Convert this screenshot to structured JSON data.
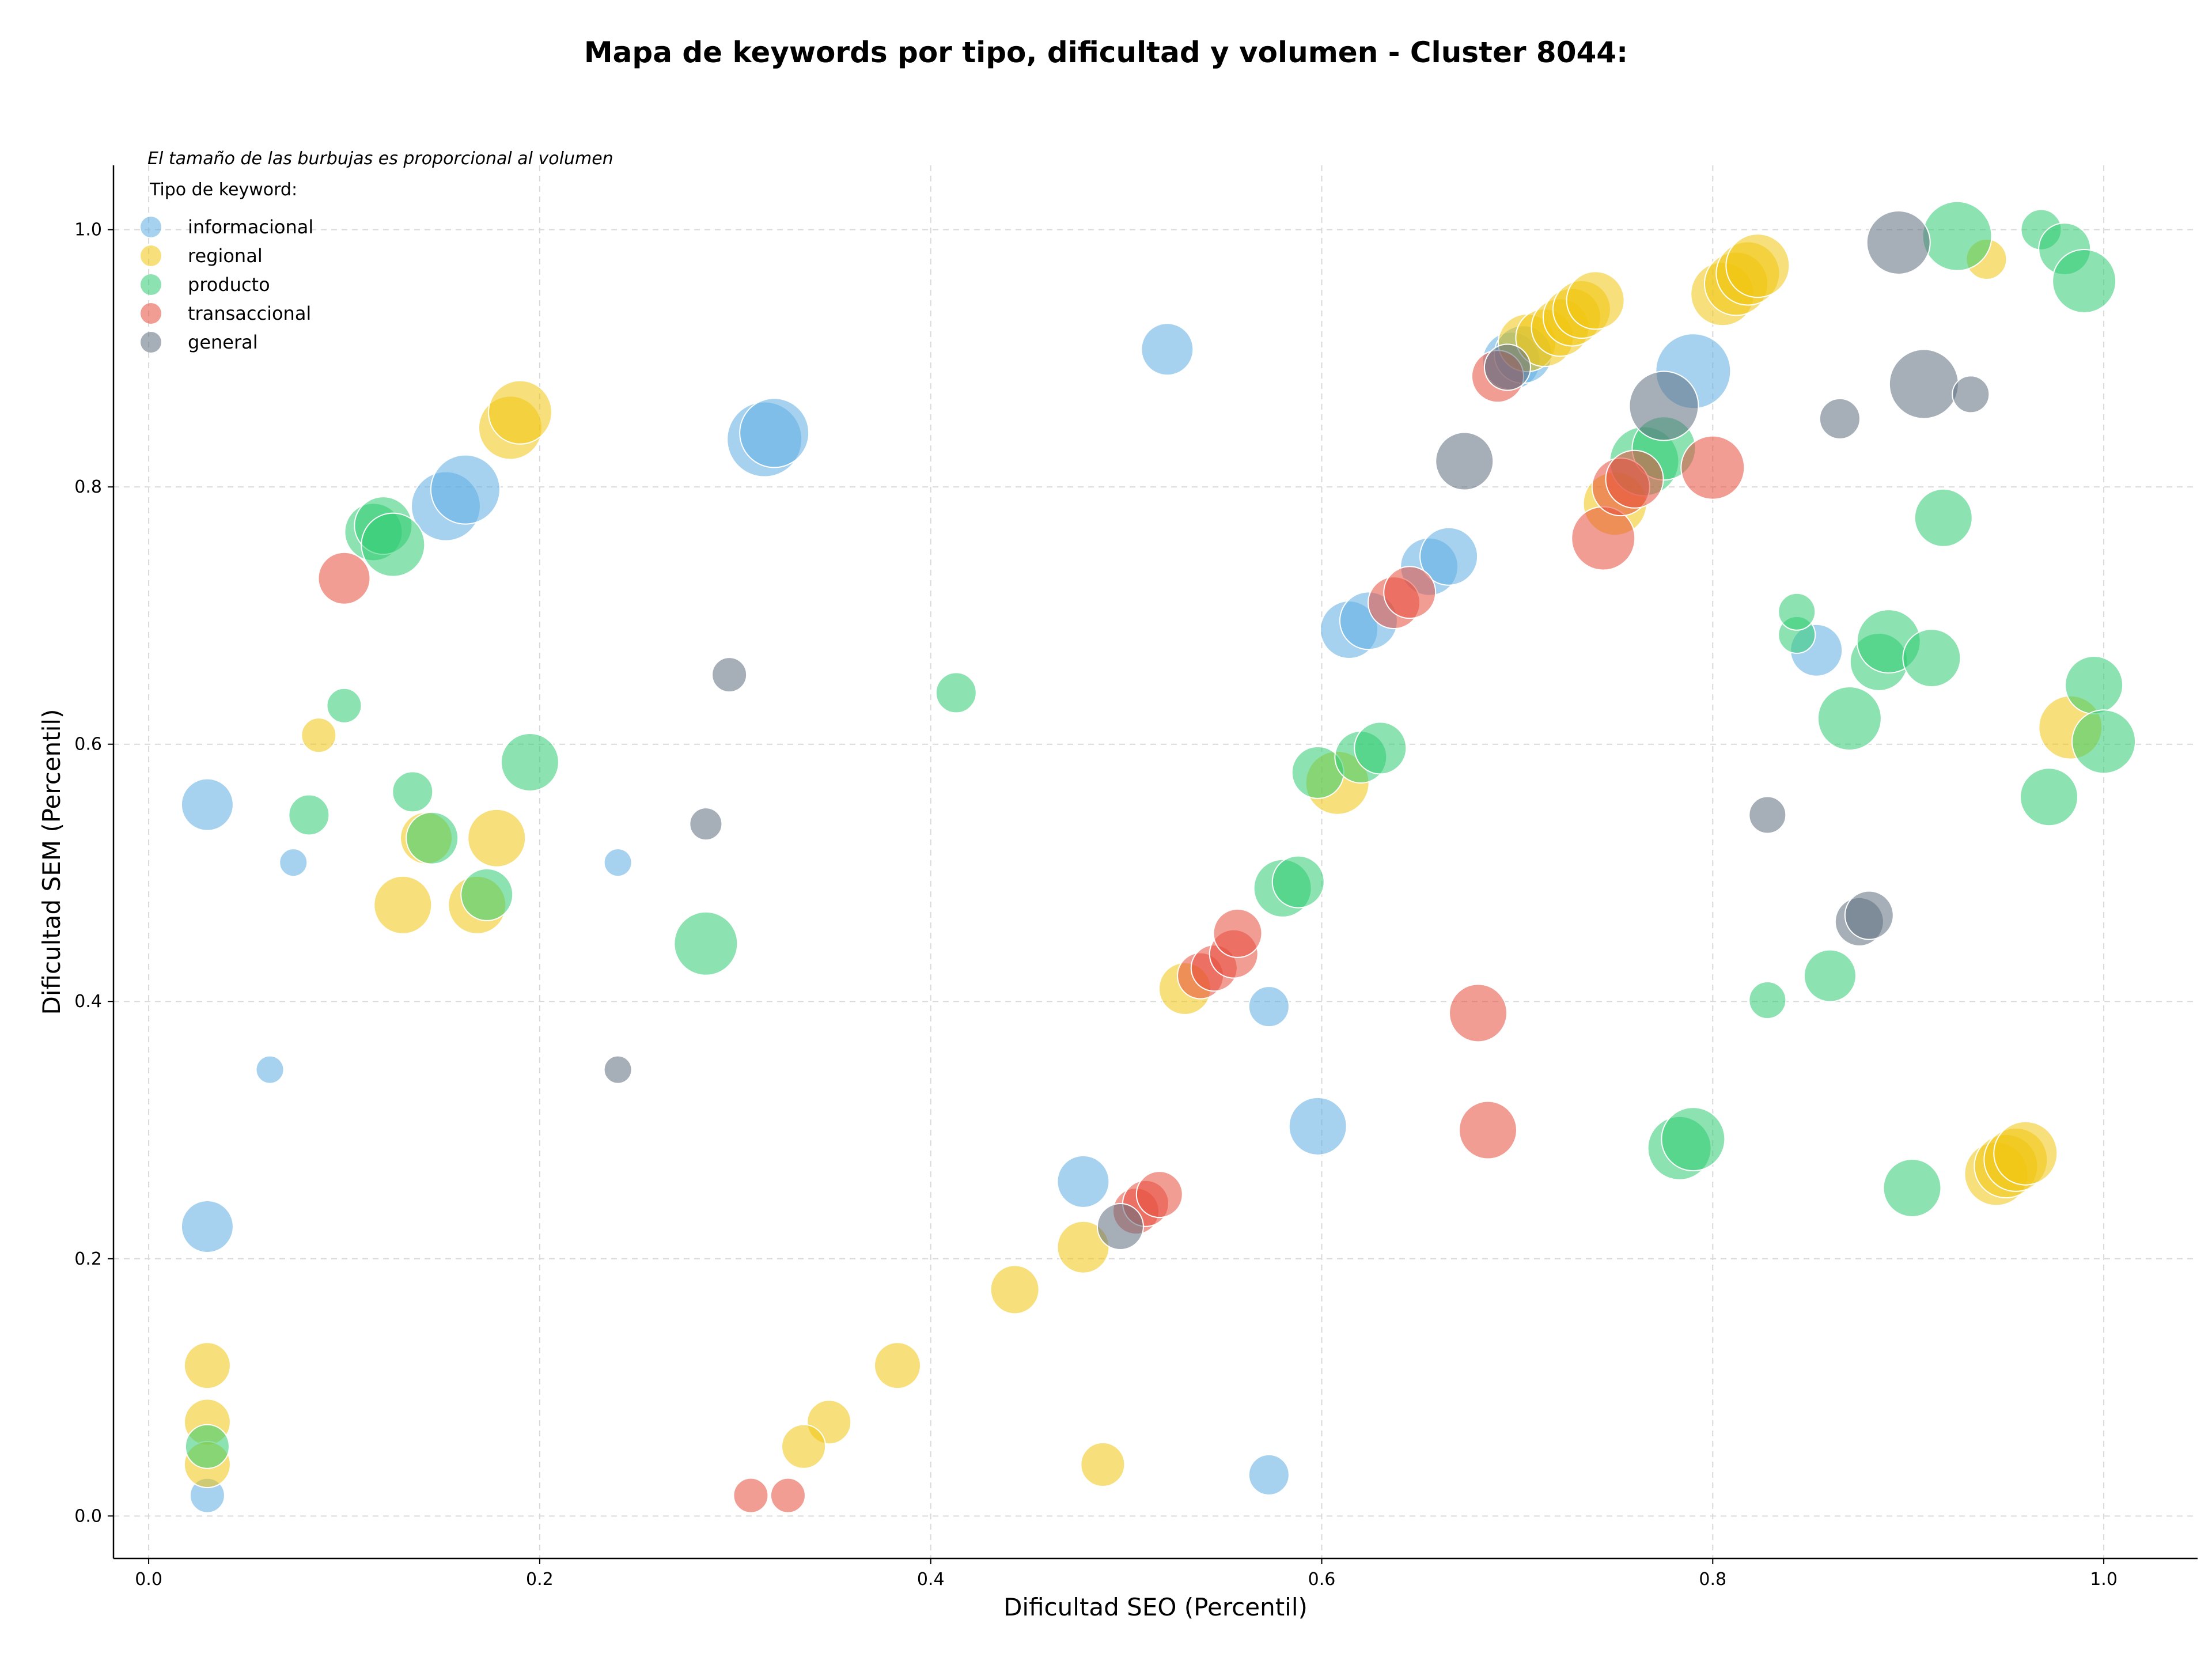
{
  "chart_data": {
    "type": "scatter",
    "title": "Mapa de keywords por tipo, dificultad y volumen - Cluster 8044:",
    "xlabel": "Dificultad SEO (Percentil)",
    "ylabel": "Dificultad SEM (Percentil)",
    "xlim": [
      -0.018,
      1.048
    ],
    "ylim": [
      -0.033,
      1.05
    ],
    "xticks": [
      "0.0",
      "0.2",
      "0.4",
      "0.6",
      "0.8",
      "1.0"
    ],
    "yticks": [
      "0.0",
      "0.2",
      "0.4",
      "0.6",
      "0.8",
      "1.0"
    ],
    "annotation": "El tamaño de las burbujas es proporcional al volumen",
    "legend_title": "Tipo de keyword:",
    "legend_placement": "top-left",
    "grid": true,
    "series": [
      {
        "name": "informacional",
        "color": "#5dade2",
        "points": [
          {
            "x": 0.03,
            "y": 0.553,
            "size": 45
          },
          {
            "x": 0.074,
            "y": 0.508,
            "size": 24
          },
          {
            "x": 0.062,
            "y": 0.347,
            "size": 24
          },
          {
            "x": 0.03,
            "y": 0.225,
            "size": 45
          },
          {
            "x": 0.03,
            "y": 0.016,
            "size": 30
          },
          {
            "x": 0.152,
            "y": 0.785,
            "size": 60
          },
          {
            "x": 0.162,
            "y": 0.798,
            "size": 60
          },
          {
            "x": 0.315,
            "y": 0.837,
            "size": 65
          },
          {
            "x": 0.32,
            "y": 0.842,
            "size": 60
          },
          {
            "x": 0.24,
            "y": 0.508,
            "size": 24
          },
          {
            "x": 0.521,
            "y": 0.907,
            "size": 45
          },
          {
            "x": 0.478,
            "y": 0.26,
            "size": 45
          },
          {
            "x": 0.573,
            "y": 0.396,
            "size": 35
          },
          {
            "x": 0.598,
            "y": 0.303,
            "size": 50
          },
          {
            "x": 0.573,
            "y": 0.032,
            "size": 35
          },
          {
            "x": 0.614,
            "y": 0.689,
            "size": 50
          },
          {
            "x": 0.624,
            "y": 0.696,
            "size": 50
          },
          {
            "x": 0.655,
            "y": 0.738,
            "size": 50
          },
          {
            "x": 0.665,
            "y": 0.746,
            "size": 50
          },
          {
            "x": 0.697,
            "y": 0.898,
            "size": 50
          },
          {
            "x": 0.703,
            "y": 0.903,
            "size": 50
          },
          {
            "x": 0.79,
            "y": 0.89,
            "size": 65
          },
          {
            "x": 0.853,
            "y": 0.673,
            "size": 45
          }
        ]
      },
      {
        "name": "regional",
        "color": "#f1c40f",
        "points": [
          {
            "x": 0.087,
            "y": 0.607,
            "size": 30
          },
          {
            "x": 0.03,
            "y": 0.117,
            "size": 40
          },
          {
            "x": 0.03,
            "y": 0.073,
            "size": 40
          },
          {
            "x": 0.03,
            "y": 0.04,
            "size": 40
          },
          {
            "x": 0.13,
            "y": 0.475,
            "size": 50
          },
          {
            "x": 0.168,
            "y": 0.475,
            "size": 50
          },
          {
            "x": 0.178,
            "y": 0.527,
            "size": 50
          },
          {
            "x": 0.185,
            "y": 0.846,
            "size": 55
          },
          {
            "x": 0.19,
            "y": 0.858,
            "size": 55
          },
          {
            "x": 0.142,
            "y": 0.527,
            "size": 45
          },
          {
            "x": 0.383,
            "y": 0.117,
            "size": 40
          },
          {
            "x": 0.348,
            "y": 0.073,
            "size": 38
          },
          {
            "x": 0.335,
            "y": 0.054,
            "size": 38
          },
          {
            "x": 0.443,
            "y": 0.176,
            "size": 42
          },
          {
            "x": 0.478,
            "y": 0.209,
            "size": 45
          },
          {
            "x": 0.488,
            "y": 0.04,
            "size": 38
          },
          {
            "x": 0.53,
            "y": 0.41,
            "size": 45
          },
          {
            "x": 0.608,
            "y": 0.57,
            "size": 55
          },
          {
            "x": 0.705,
            "y": 0.912,
            "size": 50
          },
          {
            "x": 0.714,
            "y": 0.916,
            "size": 50
          },
          {
            "x": 0.722,
            "y": 0.924,
            "size": 50
          },
          {
            "x": 0.728,
            "y": 0.932,
            "size": 50
          },
          {
            "x": 0.733,
            "y": 0.938,
            "size": 50
          },
          {
            "x": 0.74,
            "y": 0.945,
            "size": 50
          },
          {
            "x": 0.75,
            "y": 0.787,
            "size": 55
          },
          {
            "x": 0.805,
            "y": 0.95,
            "size": 55
          },
          {
            "x": 0.812,
            "y": 0.958,
            "size": 55
          },
          {
            "x": 0.818,
            "y": 0.966,
            "size": 55
          },
          {
            "x": 0.823,
            "y": 0.972,
            "size": 55
          },
          {
            "x": 0.94,
            "y": 0.977,
            "size": 35
          },
          {
            "x": 0.983,
            "y": 0.613,
            "size": 55
          },
          {
            "x": 0.945,
            "y": 0.266,
            "size": 55
          },
          {
            "x": 0.95,
            "y": 0.272,
            "size": 55
          },
          {
            "x": 0.955,
            "y": 0.277,
            "size": 55
          },
          {
            "x": 0.96,
            "y": 0.282,
            "size": 55
          }
        ]
      },
      {
        "name": "producto",
        "color": "#2ecc71",
        "points": [
          {
            "x": 0.1,
            "y": 0.63,
            "size": 30
          },
          {
            "x": 0.082,
            "y": 0.545,
            "size": 35
          },
          {
            "x": 0.03,
            "y": 0.054,
            "size": 38
          },
          {
            "x": 0.115,
            "y": 0.765,
            "size": 50
          },
          {
            "x": 0.12,
            "y": 0.77,
            "size": 50
          },
          {
            "x": 0.125,
            "y": 0.755,
            "size": 55
          },
          {
            "x": 0.135,
            "y": 0.563,
            "size": 35
          },
          {
            "x": 0.145,
            "y": 0.527,
            "size": 45
          },
          {
            "x": 0.173,
            "y": 0.483,
            "size": 45
          },
          {
            "x": 0.195,
            "y": 0.586,
            "size": 50
          },
          {
            "x": 0.285,
            "y": 0.445,
            "size": 55
          },
          {
            "x": 0.413,
            "y": 0.64,
            "size": 35
          },
          {
            "x": 0.598,
            "y": 0.578,
            "size": 45
          },
          {
            "x": 0.62,
            "y": 0.59,
            "size": 45
          },
          {
            "x": 0.63,
            "y": 0.597,
            "size": 45
          },
          {
            "x": 0.58,
            "y": 0.488,
            "size": 50
          },
          {
            "x": 0.588,
            "y": 0.493,
            "size": 45
          },
          {
            "x": 0.765,
            "y": 0.82,
            "size": 60
          },
          {
            "x": 0.775,
            "y": 0.83,
            "size": 55
          },
          {
            "x": 0.783,
            "y": 0.286,
            "size": 55
          },
          {
            "x": 0.79,
            "y": 0.293,
            "size": 55
          },
          {
            "x": 0.828,
            "y": 0.401,
            "size": 32
          },
          {
            "x": 0.843,
            "y": 0.685,
            "size": 32
          },
          {
            "x": 0.843,
            "y": 0.703,
            "size": 32
          },
          {
            "x": 0.86,
            "y": 0.42,
            "size": 45
          },
          {
            "x": 0.87,
            "y": 0.62,
            "size": 55
          },
          {
            "x": 0.885,
            "y": 0.664,
            "size": 50
          },
          {
            "x": 0.89,
            "y": 0.68,
            "size": 55
          },
          {
            "x": 0.912,
            "y": 0.667,
            "size": 50
          },
          {
            "x": 0.902,
            "y": 0.255,
            "size": 50
          },
          {
            "x": 0.918,
            "y": 0.776,
            "size": 50
          },
          {
            "x": 0.925,
            "y": 0.995,
            "size": 60
          },
          {
            "x": 0.968,
            "y": 1.0,
            "size": 35
          },
          {
            "x": 0.98,
            "y": 0.985,
            "size": 45
          },
          {
            "x": 0.99,
            "y": 0.96,
            "size": 55
          },
          {
            "x": 0.972,
            "y": 0.559,
            "size": 50
          },
          {
            "x": 0.995,
            "y": 0.646,
            "size": 50
          },
          {
            "x": 1.0,
            "y": 0.602,
            "size": 55
          }
        ]
      },
      {
        "name": "transaccional",
        "color": "#e74c3c",
        "points": [
          {
            "x": 0.1,
            "y": 0.729,
            "size": 45
          },
          {
            "x": 0.308,
            "y": 0.016,
            "size": 30
          },
          {
            "x": 0.327,
            "y": 0.016,
            "size": 30
          },
          {
            "x": 0.505,
            "y": 0.237,
            "size": 40
          },
          {
            "x": 0.51,
            "y": 0.243,
            "size": 40
          },
          {
            "x": 0.517,
            "y": 0.25,
            "size": 40
          },
          {
            "x": 0.538,
            "y": 0.42,
            "size": 40
          },
          {
            "x": 0.545,
            "y": 0.426,
            "size": 40
          },
          {
            "x": 0.555,
            "y": 0.437,
            "size": 42
          },
          {
            "x": 0.557,
            "y": 0.453,
            "size": 42
          },
          {
            "x": 0.637,
            "y": 0.71,
            "size": 45
          },
          {
            "x": 0.645,
            "y": 0.718,
            "size": 45
          },
          {
            "x": 0.69,
            "y": 0.886,
            "size": 45
          },
          {
            "x": 0.68,
            "y": 0.391,
            "size": 50
          },
          {
            "x": 0.685,
            "y": 0.3,
            "size": 50
          },
          {
            "x": 0.744,
            "y": 0.76,
            "size": 55
          },
          {
            "x": 0.753,
            "y": 0.8,
            "size": 50
          },
          {
            "x": 0.76,
            "y": 0.806,
            "size": 50
          },
          {
            "x": 0.8,
            "y": 0.815,
            "size": 55
          }
        ]
      },
      {
        "name": "general",
        "color": "#5d6d7e",
        "points": [
          {
            "x": 0.24,
            "y": 0.347,
            "size": 24
          },
          {
            "x": 0.285,
            "y": 0.538,
            "size": 28
          },
          {
            "x": 0.297,
            "y": 0.654,
            "size": 30
          },
          {
            "x": 0.497,
            "y": 0.225,
            "size": 40
          },
          {
            "x": 0.673,
            "y": 0.82,
            "size": 50
          },
          {
            "x": 0.695,
            "y": 0.893,
            "size": 40
          },
          {
            "x": 0.775,
            "y": 0.863,
            "size": 60
          },
          {
            "x": 0.828,
            "y": 0.545,
            "size": 32
          },
          {
            "x": 0.865,
            "y": 0.853,
            "size": 35
          },
          {
            "x": 0.875,
            "y": 0.462,
            "size": 42
          },
          {
            "x": 0.88,
            "y": 0.467,
            "size": 42
          },
          {
            "x": 0.895,
            "y": 0.99,
            "size": 55
          },
          {
            "x": 0.908,
            "y": 0.88,
            "size": 60
          },
          {
            "x": 0.932,
            "y": 0.872,
            "size": 32
          }
        ]
      }
    ]
  }
}
